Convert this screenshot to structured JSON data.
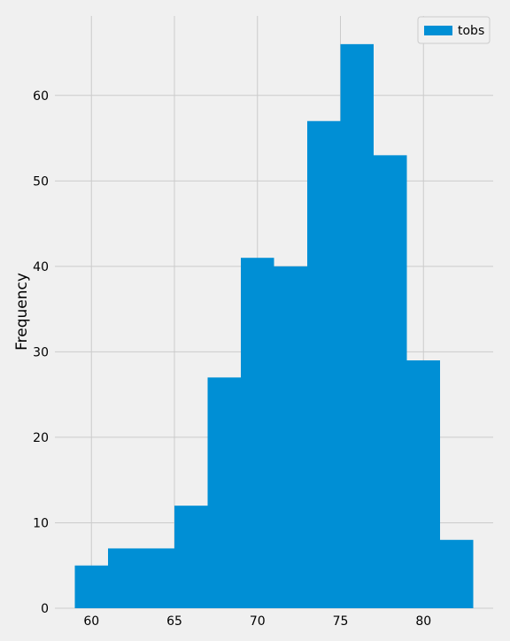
{
  "chart_data": {
    "type": "bar",
    "title": "",
    "xlabel": "",
    "ylabel": "Frequency",
    "bin_edges": [
      59,
      61,
      63,
      65,
      67,
      69,
      71,
      73,
      75,
      77,
      79,
      81,
      83
    ],
    "values": [
      5,
      7,
      7,
      12,
      27,
      41,
      40,
      57,
      66,
      53,
      29,
      8
    ],
    "series": [
      {
        "name": "tobs",
        "values": [
          5,
          7,
          7,
          12,
          27,
          41,
          40,
          57,
          66,
          53,
          29,
          8
        ]
      }
    ],
    "xlim": [
      57.8,
      84.2
    ],
    "ylim": [
      0,
      69.3
    ],
    "x_ticks": [
      60,
      65,
      70,
      75,
      80
    ],
    "y_ticks": [
      0,
      10,
      20,
      30,
      40,
      50,
      60
    ],
    "grid": true,
    "legend_position": "top-right",
    "colors": {
      "bar": "#008fd5",
      "background": "#f0f0f0",
      "grid": "#cbcbcb",
      "text": "#000000"
    }
  }
}
